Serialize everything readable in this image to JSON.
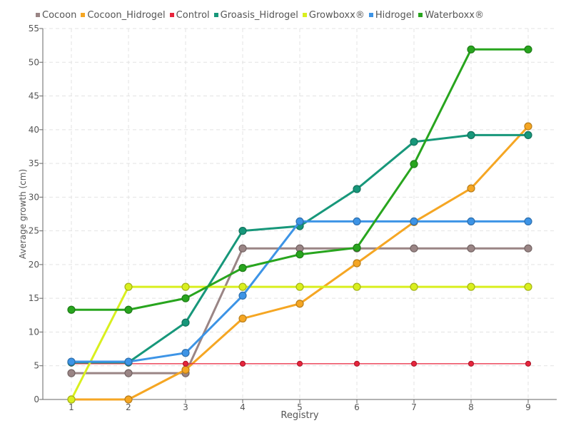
{
  "chart_data": {
    "type": "line",
    "title": "",
    "xlabel": "Registry",
    "ylabel": "Average growth (cm)",
    "x": [
      1,
      2,
      3,
      4,
      5,
      6,
      7,
      8,
      9
    ],
    "xticks": [
      "1",
      "2",
      "3",
      "4",
      "5",
      "6",
      "7",
      "8",
      "9"
    ],
    "ylim": [
      0,
      55
    ],
    "yticks": [
      "0",
      "5",
      "10",
      "15",
      "20",
      "25",
      "30",
      "35",
      "40",
      "45",
      "50",
      "55"
    ],
    "grid": true,
    "legend_position": "top-left",
    "series": [
      {
        "name": "Cocoon",
        "color": "#9a8585",
        "values": [
          3.9,
          3.9,
          3.9,
          22.4,
          22.4,
          22.4,
          22.4,
          22.4,
          22.4
        ]
      },
      {
        "name": "Cocoon_Hidrogel",
        "color": "#f5a623",
        "values": [
          0,
          0,
          4.4,
          12.0,
          14.2,
          20.2,
          26.3,
          31.3,
          40.5
        ]
      },
      {
        "name": "Control",
        "color": "#e8243c",
        "values": [
          5.3,
          5.3,
          5.3,
          5.3,
          5.3,
          5.3,
          5.3,
          5.3,
          5.3
        ]
      },
      {
        "name": "Groasis_Hidrogel",
        "color": "#17977a",
        "values": [
          5.5,
          5.5,
          11.4,
          25.0,
          25.7,
          31.2,
          38.2,
          39.2,
          39.2
        ]
      },
      {
        "name": "Growboxx®",
        "color": "#d9ef1e",
        "values": [
          0,
          16.7,
          16.7,
          16.7,
          16.7,
          16.7,
          16.7,
          16.7,
          16.7
        ]
      },
      {
        "name": "Hidrogel",
        "color": "#3d94e6",
        "values": [
          5.6,
          5.6,
          6.9,
          15.4,
          26.4,
          26.4,
          26.4,
          26.4,
          26.4
        ]
      },
      {
        "name": "Waterboxx®",
        "color": "#28a51e",
        "values": [
          13.3,
          13.3,
          15.0,
          19.5,
          21.5,
          22.5,
          34.9,
          51.9,
          51.9
        ]
      }
    ]
  }
}
